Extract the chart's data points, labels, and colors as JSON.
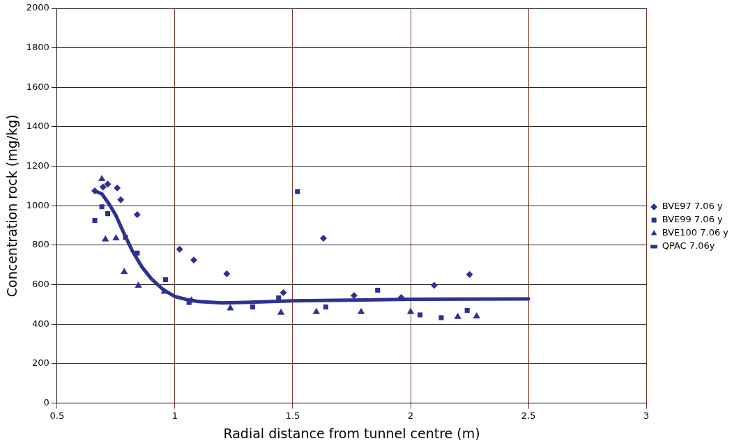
{
  "chart_data": {
    "type": "scatter",
    "xlabel": "Radial distance from tunnel centre (m)",
    "ylabel": "Concentration rock (mg/kg)",
    "xlim": [
      0.5,
      3
    ],
    "xticks": [
      0.5,
      1,
      1.5,
      2,
      2.5,
      3
    ],
    "ylim": [
      0,
      2000
    ],
    "yticks": [
      0,
      200,
      400,
      600,
      800,
      1000,
      1200,
      1400,
      1600,
      1800,
      2000
    ],
    "grid": true,
    "legend": "right",
    "series": [
      {
        "name": "BVE97 7.06 y",
        "marker": "diamond",
        "color": "#2e3192",
        "x": [
          0.66,
          0.695,
          0.715,
          0.755,
          0.77,
          0.84,
          1.02,
          1.08,
          1.22,
          1.46,
          1.63,
          1.76,
          1.96,
          2.1,
          2.25
        ],
        "values": [
          1075,
          1095,
          1110,
          1090,
          1030,
          955,
          780,
          725,
          655,
          560,
          835,
          545,
          535,
          597,
          652
        ]
      },
      {
        "name": "BVE99 7.06 y",
        "marker": "square",
        "color": "#2e3192",
        "x": [
          0.66,
          0.69,
          0.715,
          0.79,
          0.84,
          0.96,
          1.06,
          1.33,
          1.44,
          1.52,
          1.64,
          1.86,
          2.04,
          2.13,
          2.24
        ],
        "values": [
          925,
          995,
          960,
          840,
          760,
          625,
          510,
          487,
          533,
          1072,
          487,
          572,
          447,
          433,
          470
        ]
      },
      {
        "name": "BVE100 7.06 y",
        "marker": "triangle",
        "color": "#2e3192",
        "x": [
          0.69,
          0.705,
          0.75,
          0.785,
          0.845,
          0.955,
          1.07,
          1.235,
          1.45,
          1.6,
          1.79,
          2.0,
          2.2,
          2.28
        ],
        "values": [
          1135,
          830,
          835,
          665,
          595,
          565,
          520,
          480,
          458,
          462,
          462,
          462,
          437,
          440
        ]
      },
      {
        "name": "QPAC 7.06y",
        "type": "line",
        "marker": "none",
        "line_style": "solid",
        "color": "#2e3192",
        "x": [
          0.66,
          0.69,
          0.72,
          0.75,
          0.78,
          0.82,
          0.86,
          0.9,
          0.95,
          1.0,
          1.05,
          1.1,
          1.2,
          1.3,
          1.5,
          1.75,
          2.0,
          2.25,
          2.5
        ],
        "values": [
          1075,
          1060,
          1010,
          950,
          870,
          770,
          690,
          630,
          575,
          540,
          525,
          515,
          508,
          510,
          518,
          522,
          526,
          527,
          528
        ]
      }
    ]
  }
}
